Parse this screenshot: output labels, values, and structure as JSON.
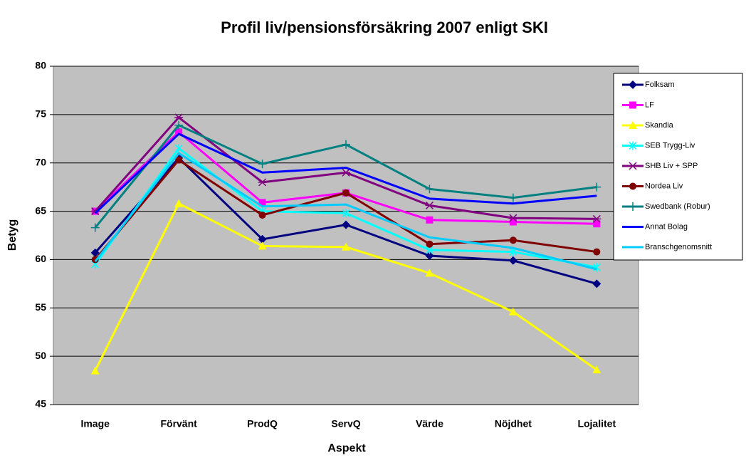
{
  "chart_data": {
    "type": "line",
    "title": "Profil liv/pensionsförsäkring 2007 enligt SKI",
    "x_label": "Aspekt",
    "y_label": "Betyg",
    "categories": [
      "Image",
      "Förvänt",
      "ProdQ",
      "ServQ",
      "Värde",
      "Nöjdhet",
      "Lojalitet"
    ],
    "ylim": [
      45,
      80
    ],
    "yticks": [
      45,
      50,
      55,
      60,
      65,
      70,
      75,
      80
    ],
    "grid": true,
    "legend": "right",
    "series": [
      {
        "name": "Folksam",
        "color": "#000080",
        "marker": "diamond",
        "values": [
          60.7,
          70.5,
          62.1,
          63.6,
          60.4,
          59.9,
          57.5
        ]
      },
      {
        "name": "LF",
        "color": "#ff00ff",
        "marker": "square",
        "values": [
          65.0,
          73.2,
          65.9,
          66.9,
          64.1,
          63.9,
          63.7
        ]
      },
      {
        "name": "Skandia",
        "color": "#ffff00",
        "marker": "triangle",
        "values": [
          48.5,
          65.8,
          61.4,
          61.3,
          58.6,
          54.6,
          48.6
        ]
      },
      {
        "name": "SEB Trygg-Liv",
        "color": "#00ffff",
        "marker": "x",
        "values": [
          59.5,
          71.5,
          65.0,
          64.8,
          61.0,
          60.8,
          59.2
        ]
      },
      {
        "name": "SHB Liv + SPP",
        "color": "#800080",
        "marker": "star",
        "values": [
          65.0,
          74.7,
          68.0,
          69.0,
          65.6,
          64.3,
          64.2
        ]
      },
      {
        "name": "Nordea Liv",
        "color": "#800000",
        "marker": "circle",
        "values": [
          60.0,
          70.3,
          64.6,
          66.9,
          61.6,
          62.0,
          60.8
        ]
      },
      {
        "name": "Swedbank (Robur)",
        "color": "#008080",
        "marker": "plus",
        "values": [
          63.3,
          73.9,
          69.9,
          71.9,
          67.3,
          66.4,
          67.5
        ]
      },
      {
        "name": "Annat Bolag",
        "color": "#0000ff",
        "values": [
          64.8,
          73.0,
          69.0,
          69.5,
          66.3,
          65.8,
          66.6
        ]
      },
      {
        "name": "Branschgenomsnitt",
        "color": "#00ccff",
        "values": [
          59.8,
          71.0,
          65.5,
          65.7,
          62.3,
          61.2,
          59.0
        ]
      }
    ]
  }
}
